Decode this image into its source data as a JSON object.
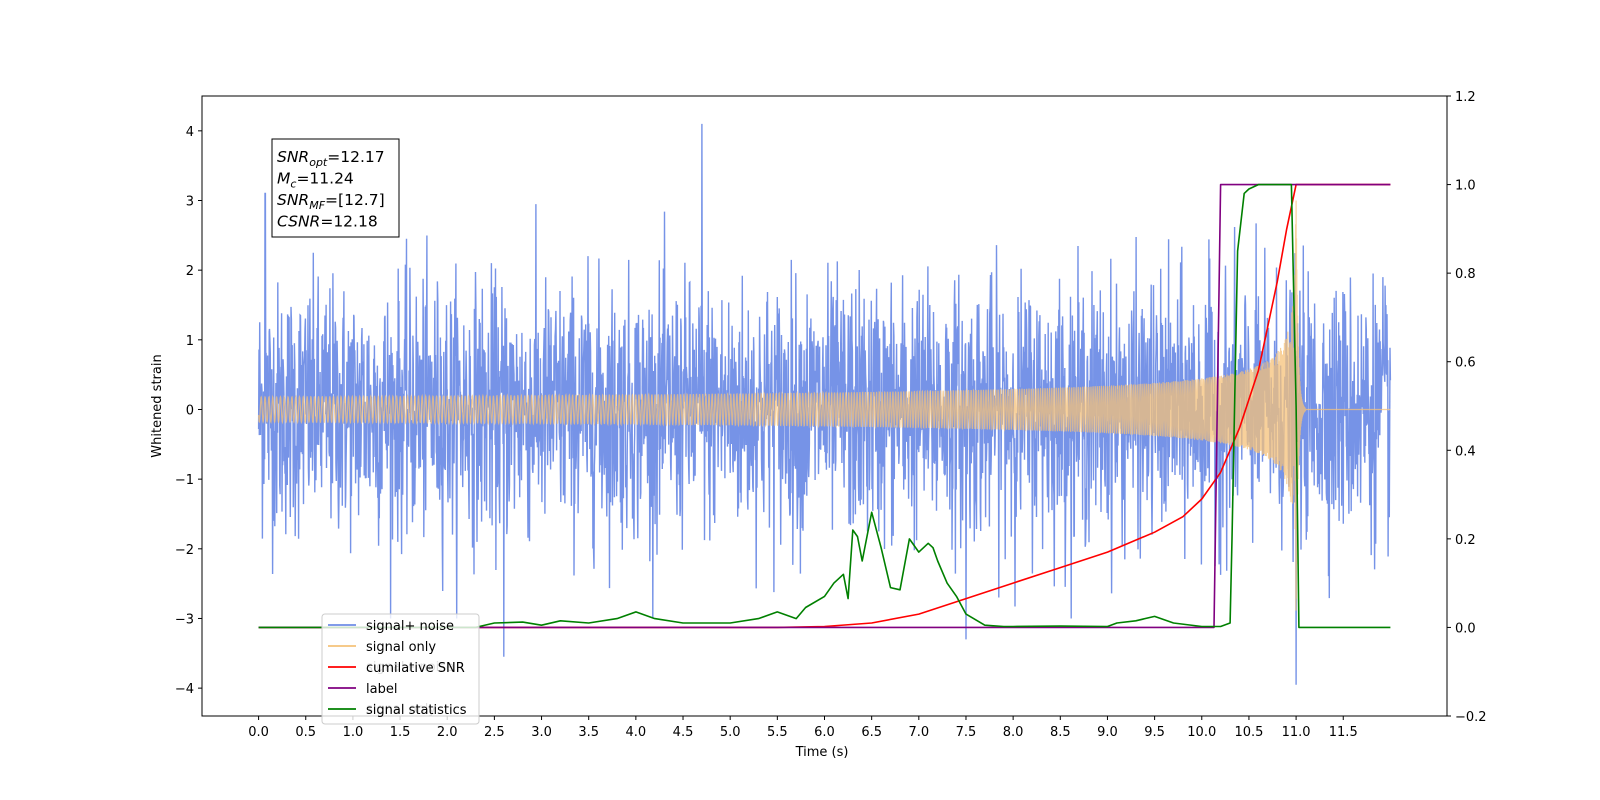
{
  "chart_data": {
    "type": "line",
    "xlabel": "Time (s)",
    "ylabel": "Whitened strain",
    "xlim": [
      -0.6,
      12.6
    ],
    "ylim": [
      -4.4,
      4.5
    ],
    "y2lim": [
      -0.2,
      1.2
    ],
    "x_ticks": [
      "0.0",
      "0.5",
      "1.0",
      "1.5",
      "2.0",
      "2.5",
      "3.0",
      "3.5",
      "4.0",
      "4.5",
      "5.0",
      "5.5",
      "6.0",
      "6.5",
      "7.0",
      "7.5",
      "8.0",
      "8.5",
      "9.0",
      "9.5",
      "10.0",
      "10.5",
      "11.0",
      "11.5"
    ],
    "y_ticks": [
      "4",
      "3",
      "2",
      "1",
      "0",
      "−1",
      "−2",
      "−3",
      "−4"
    ],
    "y2_ticks": [
      "1.2",
      "1.0",
      "0.8",
      "0.6",
      "0.4",
      "0.2",
      "0.0",
      "−0.2"
    ],
    "annotation": {
      "lines": [
        {
          "main": "SNR",
          "sub": "opt",
          "rest": "=12.17"
        },
        {
          "main": "M",
          "sub": "c",
          "rest": "=11.24"
        },
        {
          "main": "SNR",
          "sub": "MF",
          "rest": "=[12.7]"
        },
        {
          "main": "CSNR",
          "sub": "",
          "rest": "=12.18"
        }
      ]
    },
    "legend": {
      "placement": "lower-left",
      "entries": [
        "signal+ noise",
        "signal only",
        "cumilative SNR",
        "label",
        "signal statistics"
      ]
    },
    "hidden_legend_text": [
      "signal+ noise",
      "signal only"
    ],
    "series": [
      {
        "name": "signal+ noise",
        "axis": "left",
        "color": "#6f8de6",
        "x_range": [
          0.0,
          12.0
        ],
        "noise_std": 0.9,
        "peaks": [
          [
            0.07,
            3.1
          ],
          [
            4.7,
            4.1
          ],
          [
            2.6,
            -3.55
          ],
          [
            11.0,
            -3.95
          ],
          [
            7.5,
            -3.3
          ]
        ]
      },
      {
        "name": "signal only",
        "axis": "left",
        "color": "#f5c27a",
        "x_range": [
          0.0,
          12.0
        ],
        "chirp_start": 0.0,
        "merger_time": 11.0,
        "peak_amplitude": 3.0,
        "ringdown_end": 11.1
      },
      {
        "name": "cumilative SNR",
        "axis": "right",
        "color": "#ff0000",
        "x": [
          0,
          5.5,
          6.0,
          6.5,
          7.0,
          7.5,
          8.0,
          8.5,
          9.0,
          9.5,
          9.8,
          10.0,
          10.2,
          10.4,
          10.6,
          10.8,
          10.9,
          11.0,
          12.0
        ],
        "y": [
          0,
          0,
          0.002,
          0.01,
          0.03,
          0.065,
          0.1,
          0.135,
          0.17,
          0.215,
          0.25,
          0.29,
          0.35,
          0.45,
          0.58,
          0.78,
          0.9,
          1.0,
          1.0
        ]
      },
      {
        "name": "label",
        "axis": "right",
        "color": "#800080",
        "x": [
          0,
          10.13,
          10.2,
          10.95,
          11.0,
          12.0
        ],
        "y": [
          0,
          0,
          1.0,
          1.0,
          1.0,
          1.0
        ]
      },
      {
        "name": "signal statistics",
        "axis": "right",
        "color": "#008000",
        "x": [
          0,
          2.3,
          2.5,
          2.8,
          3.0,
          3.2,
          3.5,
          3.8,
          4.0,
          4.2,
          4.5,
          5.0,
          5.3,
          5.5,
          5.7,
          5.8,
          6.0,
          6.1,
          6.2,
          6.25,
          6.3,
          6.35,
          6.4,
          6.5,
          6.6,
          6.7,
          6.8,
          6.9,
          7.0,
          7.1,
          7.15,
          7.2,
          7.3,
          7.4,
          7.5,
          7.7,
          7.9,
          8.0,
          8.5,
          9.0,
          9.1,
          9.3,
          9.5,
          9.7,
          10.0,
          10.2,
          10.3,
          10.32,
          10.38,
          10.45,
          10.5,
          10.6,
          10.8,
          10.95,
          11.0,
          11.03,
          11.05,
          11.1,
          12.0
        ],
        "y": [
          0,
          0,
          0.01,
          0.012,
          0.005,
          0.015,
          0.01,
          0.02,
          0.035,
          0.02,
          0.01,
          0.01,
          0.02,
          0.035,
          0.02,
          0.045,
          0.07,
          0.1,
          0.12,
          0.065,
          0.22,
          0.205,
          0.15,
          0.26,
          0.18,
          0.09,
          0.085,
          0.2,
          0.17,
          0.19,
          0.18,
          0.15,
          0.1,
          0.07,
          0.03,
          0.005,
          0.002,
          0.002,
          0.003,
          0.002,
          0.01,
          0.015,
          0.025,
          0.01,
          0.002,
          0.002,
          0.01,
          0.2,
          0.85,
          0.98,
          0.99,
          1.0,
          1.0,
          1.0,
          0.5,
          0.0,
          0.0,
          0.0,
          0.0
        ]
      }
    ]
  }
}
